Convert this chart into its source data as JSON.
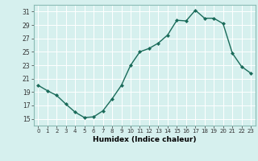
{
  "x": [
    0,
    1,
    2,
    3,
    4,
    5,
    6,
    7,
    8,
    9,
    10,
    11,
    12,
    13,
    14,
    15,
    16,
    17,
    18,
    19,
    20,
    21,
    22,
    23
  ],
  "y": [
    20.0,
    19.2,
    18.5,
    17.2,
    16.0,
    15.2,
    15.3,
    16.2,
    18.0,
    20.0,
    23.0,
    25.0,
    25.5,
    26.3,
    27.5,
    29.7,
    29.6,
    31.2,
    30.0,
    30.0,
    29.2,
    24.8,
    22.8,
    21.8
  ],
  "ylim": [
    14,
    32
  ],
  "yticks": [
    15,
    17,
    19,
    21,
    23,
    25,
    27,
    29,
    31
  ],
  "xticks": [
    0,
    1,
    2,
    3,
    4,
    5,
    6,
    7,
    8,
    9,
    10,
    11,
    12,
    13,
    14,
    15,
    16,
    17,
    18,
    19,
    20,
    21,
    22,
    23
  ],
  "xlabel": "Humidex (Indice chaleur)",
  "line_color": "#1a6b5a",
  "marker": "D",
  "marker_size": 2,
  "bg_color": "#d6f0ee",
  "grid_color": "#ffffff",
  "spine_color": "#8bbbb5",
  "tick_color": "#333333"
}
